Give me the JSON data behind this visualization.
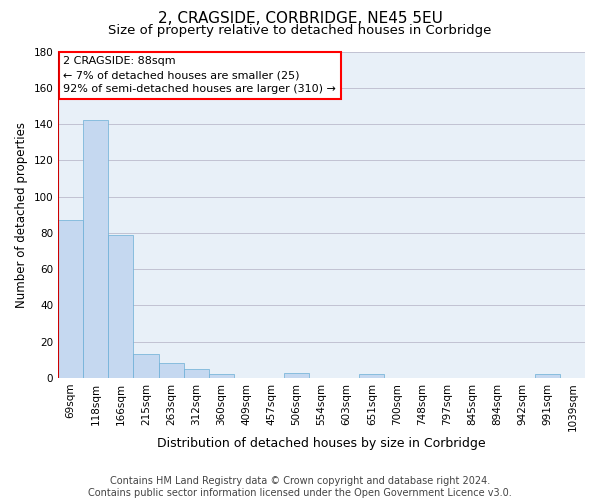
{
  "title": "2, CRAGSIDE, CORBRIDGE, NE45 5EU",
  "subtitle": "Size of property relative to detached houses in Corbridge",
  "xlabel": "Distribution of detached houses by size in Corbridge",
  "ylabel": "Number of detached properties",
  "footer_line1": "Contains HM Land Registry data © Crown copyright and database right 2024.",
  "footer_line2": "Contains public sector information licensed under the Open Government Licence v3.0.",
  "categories": [
    "69sqm",
    "118sqm",
    "166sqm",
    "215sqm",
    "263sqm",
    "312sqm",
    "360sqm",
    "409sqm",
    "457sqm",
    "506sqm",
    "554sqm",
    "603sqm",
    "651sqm",
    "700sqm",
    "748sqm",
    "797sqm",
    "845sqm",
    "894sqm",
    "942sqm",
    "991sqm",
    "1039sqm"
  ],
  "bar_values": [
    87,
    142,
    79,
    13,
    8,
    5,
    2,
    0,
    0,
    3,
    0,
    0,
    2,
    0,
    0,
    0,
    0,
    0,
    0,
    2,
    0
  ],
  "bar_color": "#c5d8f0",
  "bar_edge_color": "#6aaed6",
  "background_color": "#ffffff",
  "plot_bg_color": "#e8f0f8",
  "grid_color": "#bbbbcc",
  "ylim": [
    0,
    180
  ],
  "yticks": [
    0,
    20,
    40,
    60,
    80,
    100,
    120,
    140,
    160,
    180
  ],
  "annotation_text_line1": "2 CRAGSIDE: 88sqm",
  "annotation_text_line2": "← 7% of detached houses are smaller (25)",
  "annotation_text_line3": "92% of semi-detached houses are larger (310) →",
  "red_line_color": "#cc0000",
  "title_fontsize": 11,
  "subtitle_fontsize": 9.5,
  "xlabel_fontsize": 9,
  "ylabel_fontsize": 8.5,
  "tick_fontsize": 7.5,
  "annotation_fontsize": 8,
  "footer_fontsize": 7
}
